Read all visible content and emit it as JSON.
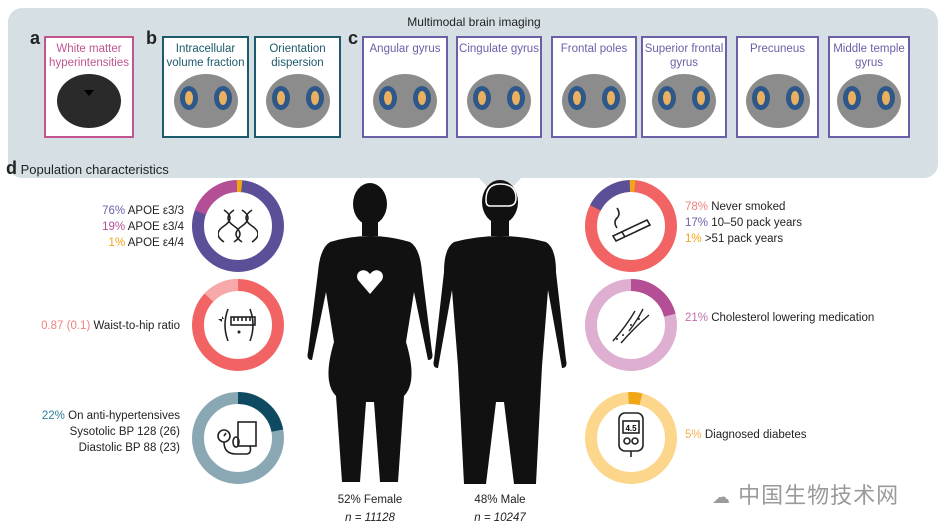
{
  "imaging": {
    "title": "Multimodal brain imaging",
    "panel_a": {
      "letter": "a",
      "boxes": [
        {
          "label": "White matter hyperintensities",
          "color": "#c0558f"
        }
      ]
    },
    "panel_b": {
      "letter": "b",
      "boxes": [
        {
          "label": "Intracellular volume fraction",
          "color": "#1d5a6b"
        },
        {
          "label": "Orientation dispersion",
          "color": "#1d5a6b"
        }
      ]
    },
    "panel_c": {
      "letter": "c",
      "boxes": [
        {
          "label": "Angular gyrus",
          "color": "#6b5fa8"
        },
        {
          "label": "Cingulate gyrus",
          "color": "#6b5fa8"
        },
        {
          "label": "Frontal poles",
          "color": "#6b5fa8"
        },
        {
          "label": "Superior frontal gyrus",
          "color": "#6b5fa8"
        },
        {
          "label": "Precuneus",
          "color": "#6b5fa8"
        },
        {
          "label": "Middle temple gyrus",
          "color": "#6b5fa8"
        }
      ]
    }
  },
  "population": {
    "letter": "d",
    "title": "Population characteristics",
    "apoe": {
      "icon": "dna-icon",
      "base_color": "#5b4f98",
      "lines": [
        {
          "pct": "76%",
          "text": "APOE ε3/3",
          "color": "#6b5fa8",
          "value": 76
        },
        {
          "pct": "19%",
          "text": "APOE ε3/4",
          "color": "#b44f95",
          "value": 19
        },
        {
          "pct": "1%",
          "text": "APOE ε4/4",
          "color": "#f2a516",
          "value": 1
        }
      ]
    },
    "waist": {
      "icon": "waist-measure-icon",
      "value_text": "0.87 (0.1)",
      "text": "Waist-to-hip ratio",
      "value": 0.87,
      "color": "#f26464",
      "track_color": "#f7a8a8"
    },
    "bp": {
      "icon": "blood-pressure-icon",
      "pct": "22%",
      "text": "On anti-hypertensives",
      "value": 22,
      "color": "#0f4a63",
      "track_color": "#8aa8b4",
      "lines": [
        "Sysotolic BP 128 (26)",
        "Diastolic BP 88 (23)"
      ]
    },
    "smoking": {
      "icon": "cigarette-icon",
      "base_color": "#f26464",
      "lines": [
        {
          "pct": "78%",
          "text": "Never smoked",
          "color": "#f26464",
          "value": 78
        },
        {
          "pct": "17%",
          "text": "10–50 pack years",
          "color": "#5b4f98",
          "value": 17
        },
        {
          "pct": "1%",
          "text": ">51 pack years",
          "color": "#f2a516",
          "value": 1
        }
      ]
    },
    "cholesterol": {
      "icon": "artery-icon",
      "pct": "21%",
      "text": "Cholesterol lowering medication",
      "value": 21,
      "color": "#b44f95",
      "track_color": "#deafd0"
    },
    "diabetes": {
      "icon": "glucose-meter-icon",
      "pct": "5%",
      "text": "Diagnosed diabetes",
      "value": 5,
      "color": "#f2a516",
      "track_color": "#fcd68a",
      "meter_reading": "4.5"
    },
    "female": {
      "label": "52% Female",
      "n": "n = 11128"
    },
    "male": {
      "label": "48% Male",
      "n": "n = 10247"
    }
  },
  "watermark": "中国生物技术网"
}
